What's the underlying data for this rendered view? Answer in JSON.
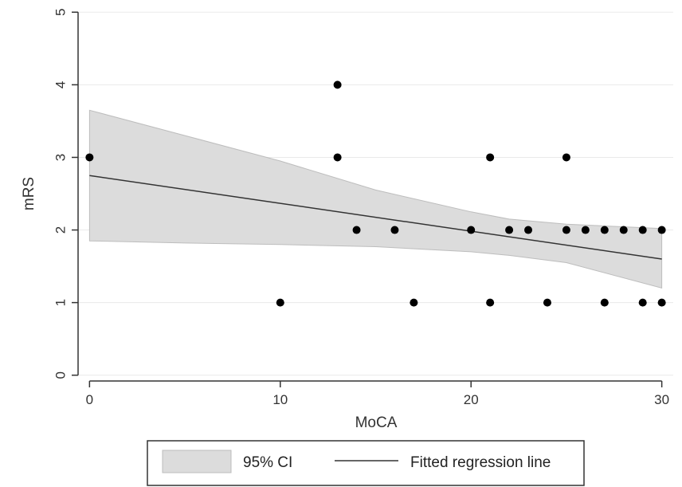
{
  "chart_data": {
    "type": "scatter",
    "title": "",
    "xlabel": "MoCA",
    "ylabel": "mRS",
    "xlim": [
      -0.6,
      30.6
    ],
    "ylim": [
      -0.08,
      5.08
    ],
    "xticks": [
      0,
      10,
      20,
      30
    ],
    "yticks": [
      0,
      1,
      2,
      3,
      4,
      5
    ],
    "grid": "horizontal",
    "legend_position": "bottom",
    "points": [
      {
        "x": 0,
        "y": 3
      },
      {
        "x": 10,
        "y": 1
      },
      {
        "x": 13,
        "y": 4
      },
      {
        "x": 13,
        "y": 3
      },
      {
        "x": 14,
        "y": 2
      },
      {
        "x": 16,
        "y": 2
      },
      {
        "x": 17,
        "y": 1
      },
      {
        "x": 20,
        "y": 2
      },
      {
        "x": 21,
        "y": 3
      },
      {
        "x": 21,
        "y": 1
      },
      {
        "x": 22,
        "y": 2
      },
      {
        "x": 23,
        "y": 2
      },
      {
        "x": 24,
        "y": 1
      },
      {
        "x": 25,
        "y": 3
      },
      {
        "x": 25,
        "y": 2
      },
      {
        "x": 26,
        "y": 2
      },
      {
        "x": 27,
        "y": 2
      },
      {
        "x": 27,
        "y": 1
      },
      {
        "x": 28,
        "y": 2
      },
      {
        "x": 29,
        "y": 2
      },
      {
        "x": 29,
        "y": 1
      },
      {
        "x": 30,
        "y": 2
      },
      {
        "x": 30,
        "y": 1
      }
    ],
    "regression_line": {
      "x": [
        0,
        30
      ],
      "y": [
        2.75,
        1.6
      ]
    },
    "confidence_band": {
      "x": [
        0,
        5,
        10,
        15,
        20,
        22,
        25,
        30
      ],
      "lower": [
        1.85,
        1.82,
        1.8,
        1.77,
        1.7,
        1.65,
        1.55,
        1.2
      ],
      "upper": [
        3.65,
        3.3,
        2.95,
        2.55,
        2.25,
        2.15,
        2.08,
        2.02
      ]
    },
    "colors": {
      "points": "#000000",
      "line": "#333333",
      "band_fill": "#dcdcdc",
      "band_stroke": "#bdbdbd",
      "grid": "#eaeaea",
      "axis": "#333333"
    },
    "legend": [
      {
        "label": "95% CI",
        "kind": "band"
      },
      {
        "label": "Fitted regression line",
        "kind": "line"
      }
    ]
  }
}
